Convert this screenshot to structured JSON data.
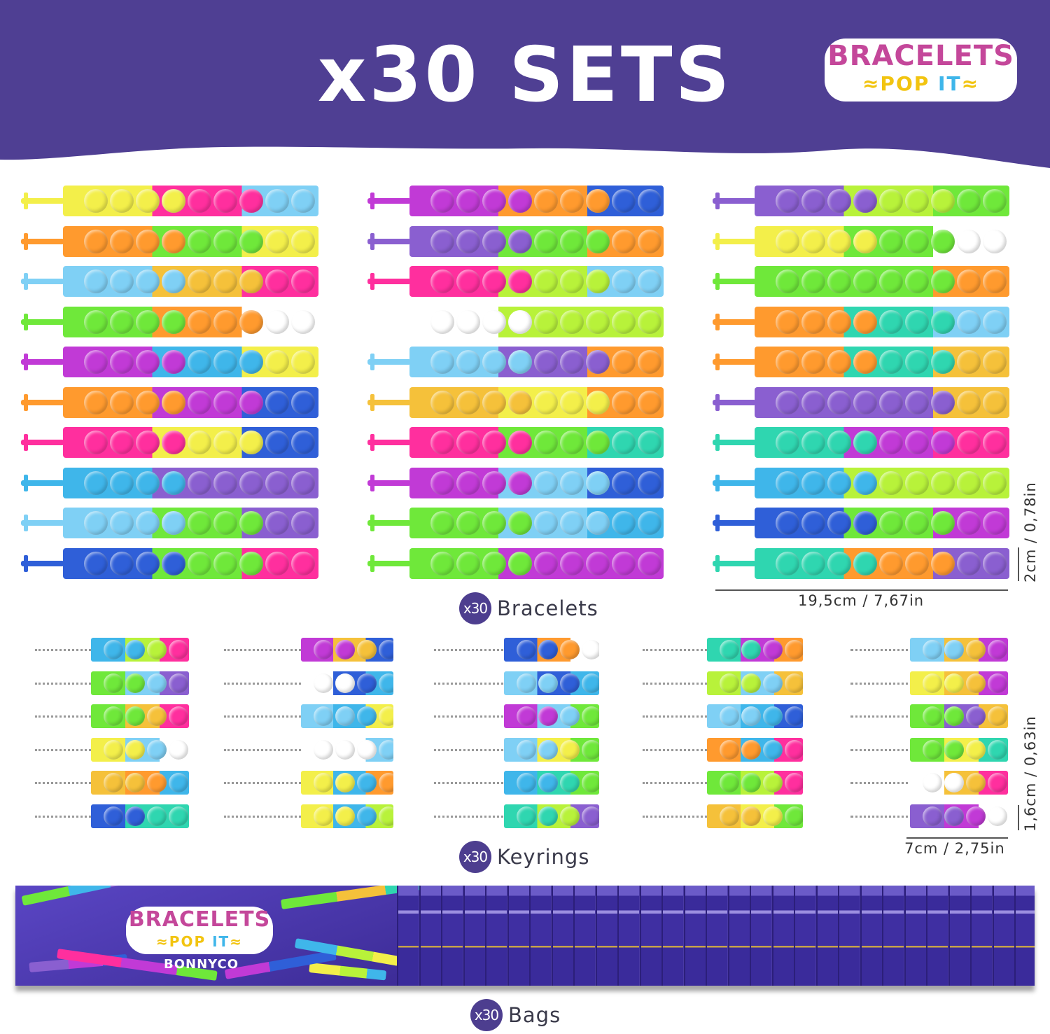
{
  "header": {
    "title": "x30 SETS",
    "background": "#4f3f93"
  },
  "logo": {
    "line1": "BRACELETS",
    "line2a": "POP",
    "line2b": "IT"
  },
  "sections": {
    "bracelets": {
      "count": "x30",
      "label": "Bracelets",
      "length": "19,5cm / 7,67in",
      "width": "2cm / 0,78in"
    },
    "keyrings": {
      "count": "x30",
      "label": "Keyrings",
      "length": "7cm / 2,75in",
      "width": "1,6cm / 0,63in"
    },
    "bags": {
      "count": "x30",
      "label": "Bags",
      "brand": "BONNYCO"
    }
  },
  "palette": [
    "#3fb6ea",
    "#7fd0f5",
    "#2f5fd8",
    "#ff9a2e",
    "#b8f23a",
    "#6fe83a",
    "#f3ef4a",
    "#ff2f9e",
    "#c13ad6",
    "#2fd6b0",
    "#ffffff",
    "#f5c13a",
    "#8a5fd0"
  ]
}
